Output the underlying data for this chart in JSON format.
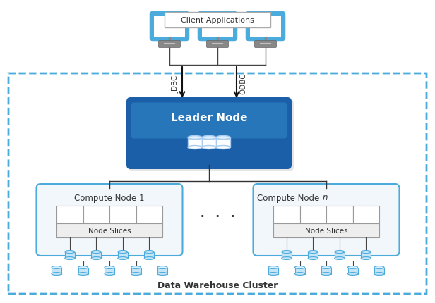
{
  "bg_color": "#ffffff",
  "cluster_label": "Data Warehouse Cluster",
  "client_label": "Client Applications",
  "leader_label": "Leader Node",
  "jdbc_label": "JDBC",
  "odbc_label": "ODBC",
  "compute1_label": "Compute Node 1",
  "computeN_label": "Compute Node n",
  "dots_label": "·   ·   ·",
  "node_slices_label": "Node Slices",
  "cluster_border_color": "#4aabdc",
  "compute_border_color": "#4aabdc",
  "leader_blue_dark": "#1a5fa8",
  "leader_blue_light": "#3389c8",
  "monitor_screen_color": "#f0f8ff",
  "monitor_frame_color": "#4aabdc",
  "monitor_stand_color": "#888888",
  "line_color": "#333333",
  "arrow_color": "#111111",
  "node_slice_fill": "#eeeeee",
  "node_slice_border": "#999999",
  "compute_fill": "#f2f7fc",
  "cyl_fill": "#c5e4f5",
  "cyl_top": "#daf0ff",
  "cyl_edge": "#4aabdc",
  "white": "#ffffff"
}
